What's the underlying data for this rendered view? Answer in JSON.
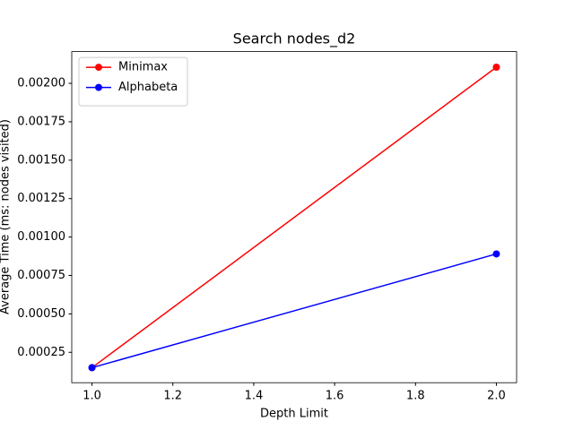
{
  "chart_data": {
    "type": "line",
    "title": "Search nodes_d2",
    "xlabel": "Depth Limit",
    "ylabel": "Average Time (ms: nodes visited)",
    "x": [
      1,
      2
    ],
    "series": [
      {
        "name": "Minimax",
        "color": "#ff0000",
        "values": [
          0.00015,
          0.002105
        ]
      },
      {
        "name": "Alphabeta",
        "color": "#0000ff",
        "values": [
          0.00015,
          0.00089
        ]
      }
    ],
    "xlim": [
      0.95,
      2.05
    ],
    "xticks": [
      {
        "value": 1.0,
        "label": "1.0"
      },
      1.2,
      1.4,
      1.6,
      1.8,
      {
        "value": 2.0,
        "label": "2.0"
      }
    ],
    "ylim": [
      5.22e-05,
      0.0022065
    ],
    "yticks": [
      0.00025,
      {
        "value": 0.0005,
        "label": "0.00050"
      },
      0.00075,
      {
        "value": 0.001,
        "label": "0.00100"
      },
      0.00125,
      {
        "value": 0.0015,
        "label": "0.00150"
      },
      0.00175,
      {
        "value": 0.002,
        "label": "0.00200"
      }
    ],
    "legend": "upper left",
    "grid": false
  }
}
